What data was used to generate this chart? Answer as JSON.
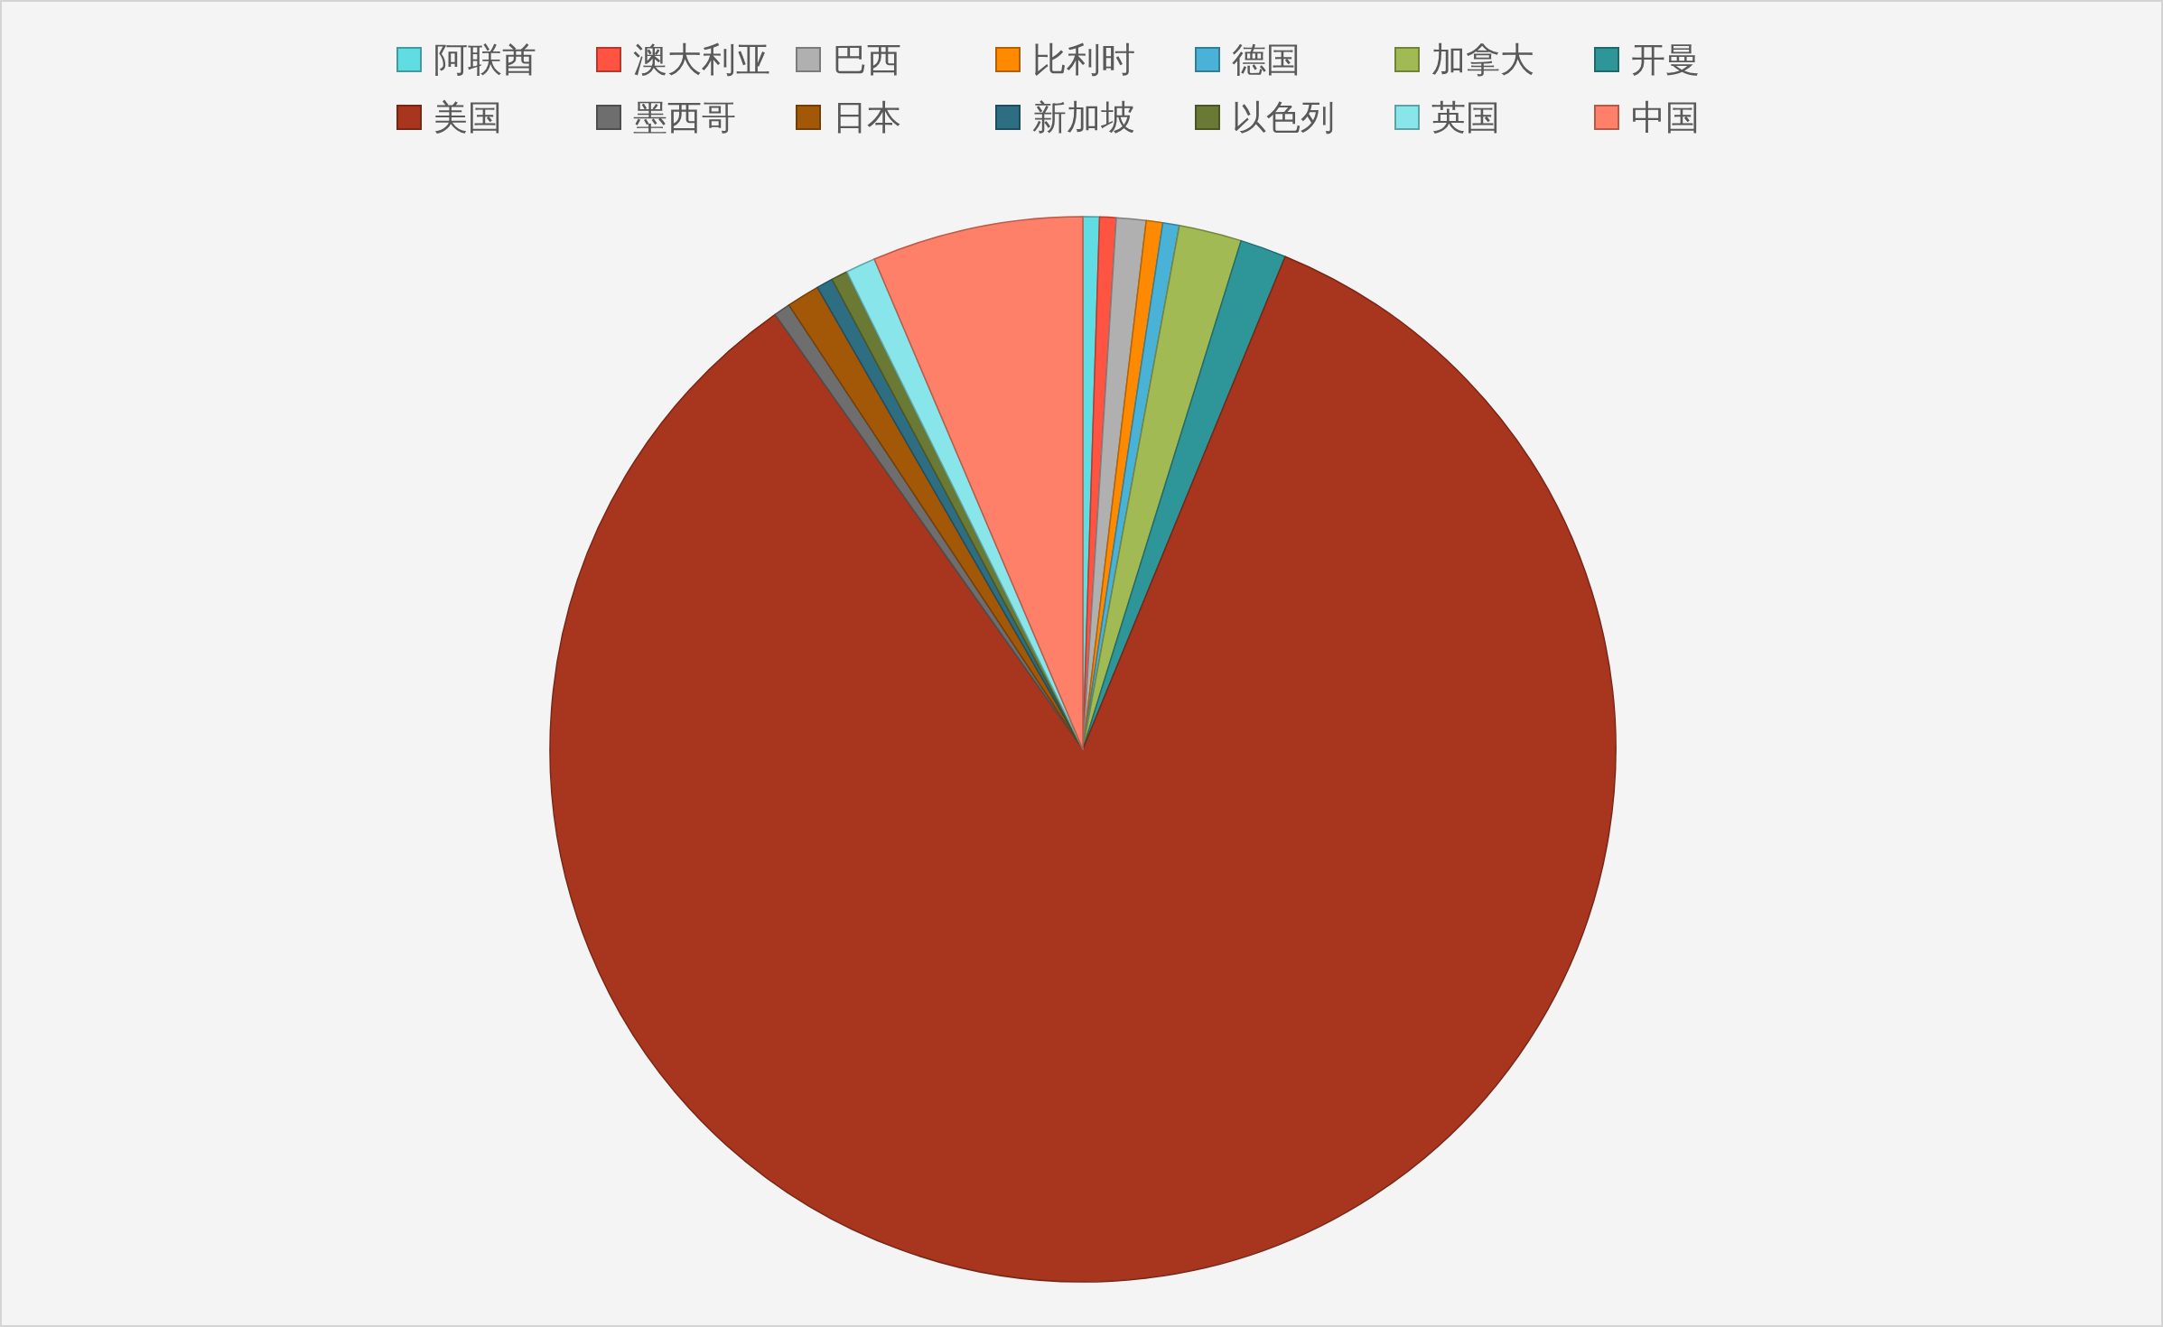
{
  "chart_data": {
    "type": "pie",
    "categories": [
      "阿联酋",
      "澳大利亚",
      "巴西",
      "比利时",
      "德国",
      "加拿大",
      "开曼",
      "美国",
      "墨西哥",
      "日本",
      "新加坡",
      "以色列",
      "英国",
      "中国"
    ],
    "values": [
      0.5,
      0.5,
      0.9,
      0.5,
      0.5,
      1.9,
      1.4,
      84.0,
      0.5,
      1.0,
      0.5,
      0.5,
      0.9,
      6.4
    ],
    "colors": [
      "#60dde3",
      "#ff5442",
      "#b0b0b0",
      "#ff8a00",
      "#4ab2d6",
      "#a2ba54",
      "#2e9698",
      "#a8361e",
      "#6e6e6e",
      "#a35808",
      "#2e6e82",
      "#6a7934",
      "#88e6ea",
      "#ff8068"
    ],
    "legend": "top"
  }
}
